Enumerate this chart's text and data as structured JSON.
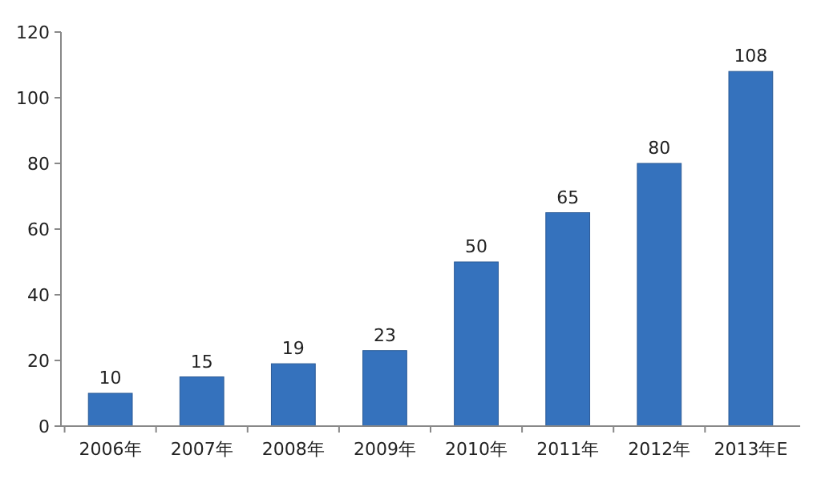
{
  "chart_data": {
    "type": "bar",
    "categories": [
      "2006年",
      "2007年",
      "2008年",
      "2009年",
      "2010年",
      "2011年",
      "2012年",
      "2013年E"
    ],
    "values": [
      10,
      15,
      19,
      23,
      50,
      65,
      80,
      108
    ],
    "color": "#3572bd",
    "ylim": [
      0,
      120
    ],
    "yticks": [
      0,
      20,
      40,
      60,
      80,
      100,
      120
    ],
    "data_labels": true,
    "grid": false
  }
}
